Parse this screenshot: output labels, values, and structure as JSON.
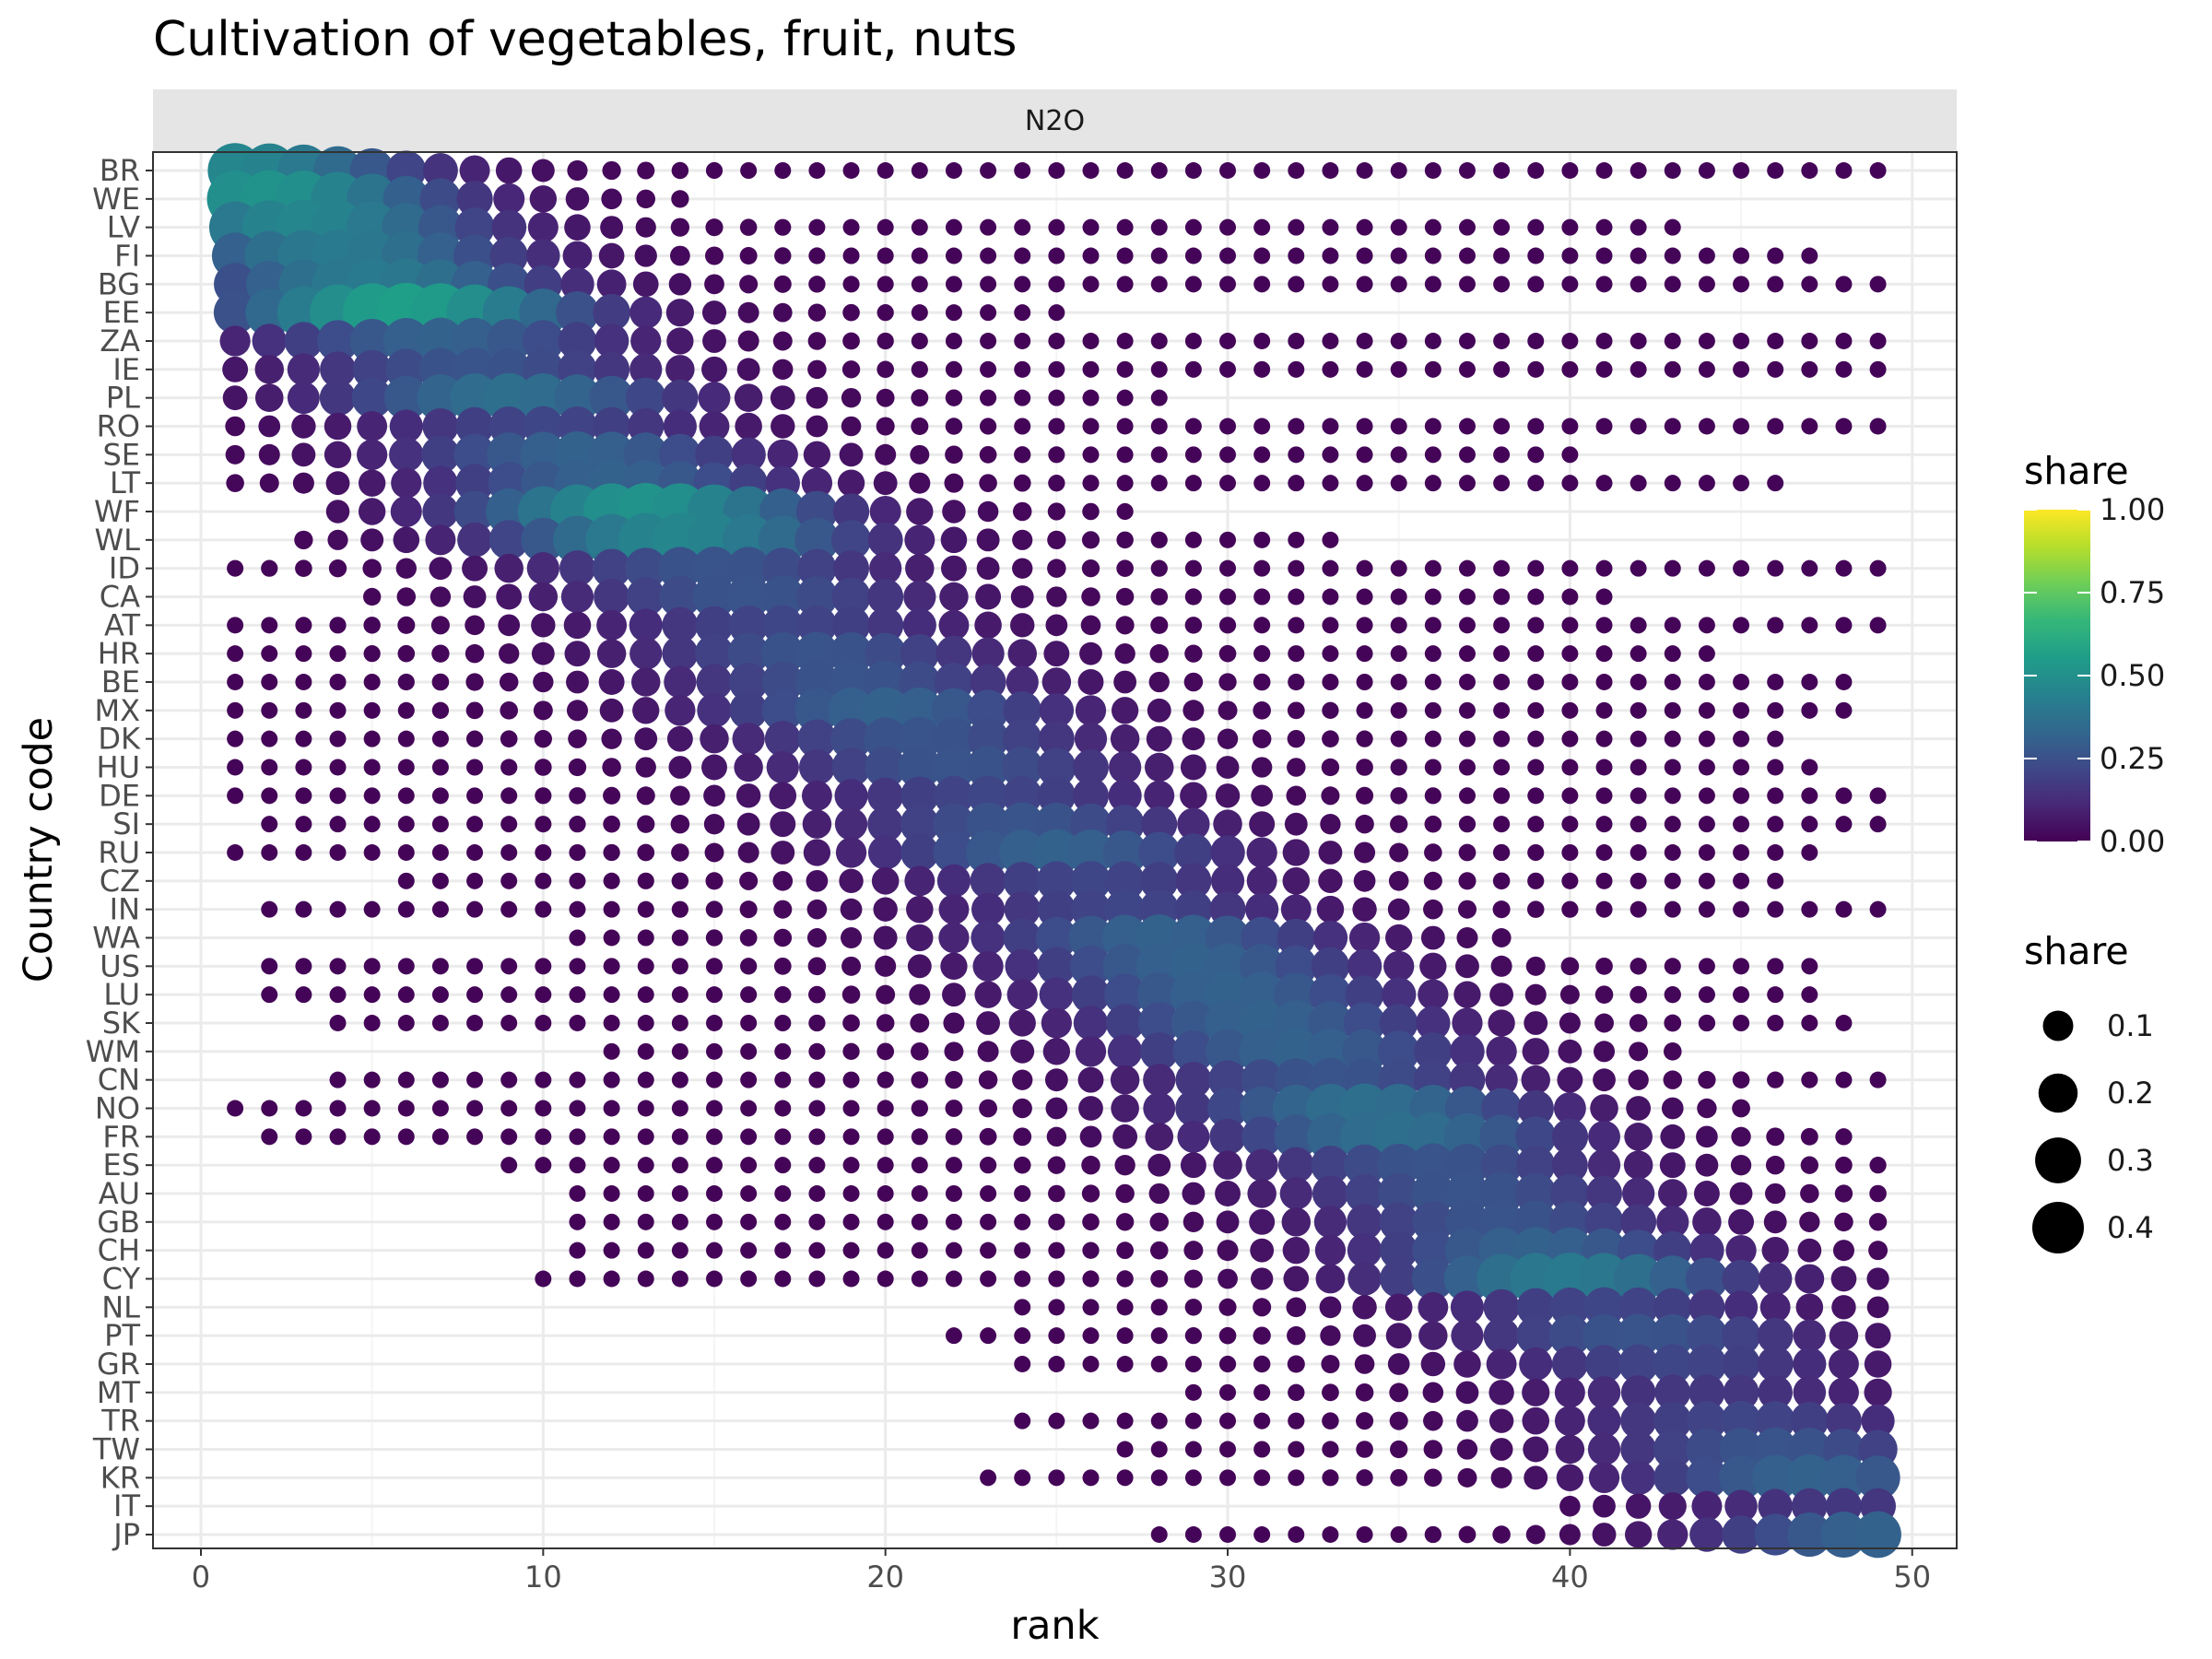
{
  "chart_data": {
    "type": "scatter",
    "title": "Cultivation of vegetables, fruit, nuts",
    "facet_label": "N2O",
    "xlabel": "rank",
    "ylabel": "Country code",
    "xlim": [
      -1.4,
      51.3
    ],
    "x_ticks": [
      0,
      10,
      20,
      30,
      40,
      50
    ],
    "grid": true,
    "rank_max": 49,
    "countries": [
      "BR",
      "WE",
      "LV",
      "FI",
      "BG",
      "EE",
      "ZA",
      "IE",
      "PL",
      "RO",
      "SE",
      "LT",
      "WF",
      "WL",
      "ID",
      "CA",
      "AT",
      "HR",
      "BE",
      "MX",
      "DK",
      "HU",
      "DE",
      "SI",
      "RU",
      "CZ",
      "IN",
      "WA",
      "US",
      "LU",
      "SK",
      "WM",
      "CN",
      "NO",
      "FR",
      "ES",
      "AU",
      "GB",
      "CH",
      "CY",
      "NL",
      "PT",
      "GR",
      "MT",
      "TR",
      "TW",
      "KR",
      "IT",
      "JP"
    ],
    "ranges": [
      [
        1,
        49,
        0.45
      ],
      [
        1,
        14,
        0.5
      ],
      [
        1,
        43,
        0.45
      ],
      [
        1,
        47,
        0.4
      ],
      [
        1,
        49,
        0.4
      ],
      [
        1,
        25,
        0.55
      ],
      [
        1,
        49,
        0.3
      ],
      [
        1,
        49,
        0.25
      ],
      [
        1,
        28,
        0.35
      ],
      [
        1,
        49,
        0.2
      ],
      [
        1,
        40,
        0.3
      ],
      [
        1,
        46,
        0.3
      ],
      [
        4,
        27,
        0.5
      ],
      [
        3,
        33,
        0.45
      ],
      [
        1,
        49,
        0.25
      ],
      [
        5,
        41,
        0.25
      ],
      [
        1,
        49,
        0.2
      ],
      [
        1,
        44,
        0.25
      ],
      [
        1,
        48,
        0.25
      ],
      [
        1,
        48,
        0.3
      ],
      [
        1,
        46,
        0.25
      ],
      [
        1,
        47,
        0.25
      ],
      [
        1,
        49,
        0.2
      ],
      [
        2,
        49,
        0.25
      ],
      [
        1,
        47,
        0.3
      ],
      [
        6,
        46,
        0.2
      ],
      [
        2,
        49,
        0.2
      ],
      [
        11,
        38,
        0.3
      ],
      [
        2,
        47,
        0.3
      ],
      [
        2,
        47,
        0.3
      ],
      [
        4,
        48,
        0.3
      ],
      [
        12,
        43,
        0.3
      ],
      [
        4,
        49,
        0.25
      ],
      [
        1,
        45,
        0.35
      ],
      [
        2,
        48,
        0.35
      ],
      [
        9,
        49,
        0.25
      ],
      [
        11,
        49,
        0.25
      ],
      [
        11,
        49,
        0.25
      ],
      [
        11,
        49,
        0.3
      ],
      [
        10,
        49,
        0.4
      ],
      [
        24,
        49,
        0.2
      ],
      [
        22,
        49,
        0.25
      ],
      [
        24,
        49,
        0.2
      ],
      [
        29,
        49,
        0.15
      ],
      [
        24,
        49,
        0.2
      ],
      [
        27,
        49,
        0.25
      ],
      [
        23,
        49,
        0.3
      ],
      [
        40,
        49,
        0.15
      ],
      [
        28,
        49,
        0.3
      ]
    ],
    "size_legend": {
      "title": "share",
      "values": [
        0.1,
        0.2,
        0.3,
        0.4
      ]
    },
    "color_legend": {
      "title": "share",
      "ticks": [
        1.0,
        0.75,
        0.5,
        0.25,
        0.0
      ],
      "tick_labels": [
        "1.00",
        "0.75",
        "0.50",
        "0.25",
        "0.00"
      ],
      "range": [
        0,
        1
      ],
      "palette": "viridis"
    },
    "colors": {
      "viridis": [
        "#440154",
        "#482878",
        "#3e4989",
        "#31688e",
        "#26828e",
        "#1f9e89",
        "#35b779",
        "#6ece58",
        "#b5de2b",
        "#fde725"
      ],
      "panel_border": "#333333",
      "grid_major": "#ebebeb",
      "grid_minor": "#f5f5f5",
      "strip_fill": "#e5e5e5"
    }
  }
}
